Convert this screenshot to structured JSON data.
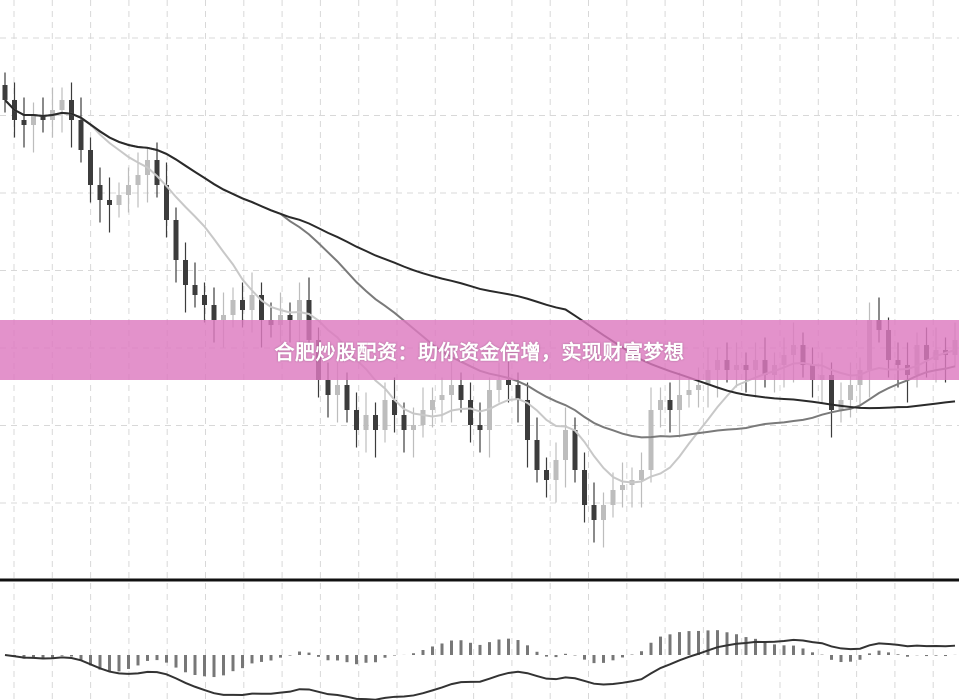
{
  "banner": {
    "text": "合肥炒股配资：助你资金倍增，实现财富梦想",
    "color": "#dd7ac0"
  },
  "chart_data": {
    "type": "candlestick",
    "title": "",
    "grid": true,
    "colors": {
      "up": "#bdbdbd",
      "down": "#3c3c3c",
      "ma_fast": "#c8c8c8",
      "ma_mid": "#7a7a7a",
      "ma_slow": "#2a2a2a",
      "macd": "#777777"
    },
    "moving_average_periods": [
      10,
      30,
      60
    ],
    "close": [
      96,
      92,
      91,
      93,
      92,
      94,
      96,
      92,
      86,
      79,
      76,
      75,
      77,
      79,
      81,
      84,
      79,
      72,
      64,
      59,
      57,
      55,
      52,
      53,
      56,
      54,
      57,
      52,
      51,
      53,
      52,
      56,
      48,
      40,
      37,
      39,
      34,
      30,
      33,
      30,
      36,
      33,
      30,
      31,
      34,
      36,
      37,
      39,
      36,
      31,
      30,
      38,
      40,
      39,
      36,
      28,
      22,
      20,
      24,
      30,
      22,
      15,
      12,
      15,
      18,
      19,
      20,
      22,
      34,
      36,
      34,
      37,
      38,
      39,
      42,
      44,
      42,
      43,
      42,
      44,
      41,
      43,
      45,
      47,
      43,
      40,
      41,
      34,
      36,
      39,
      42,
      52,
      50,
      44,
      43,
      41,
      47,
      44,
      46,
      45,
      48
    ],
    "ylim": [
      0,
      110
    ],
    "lower_panel": {
      "type": "macd-histogram"
    }
  }
}
